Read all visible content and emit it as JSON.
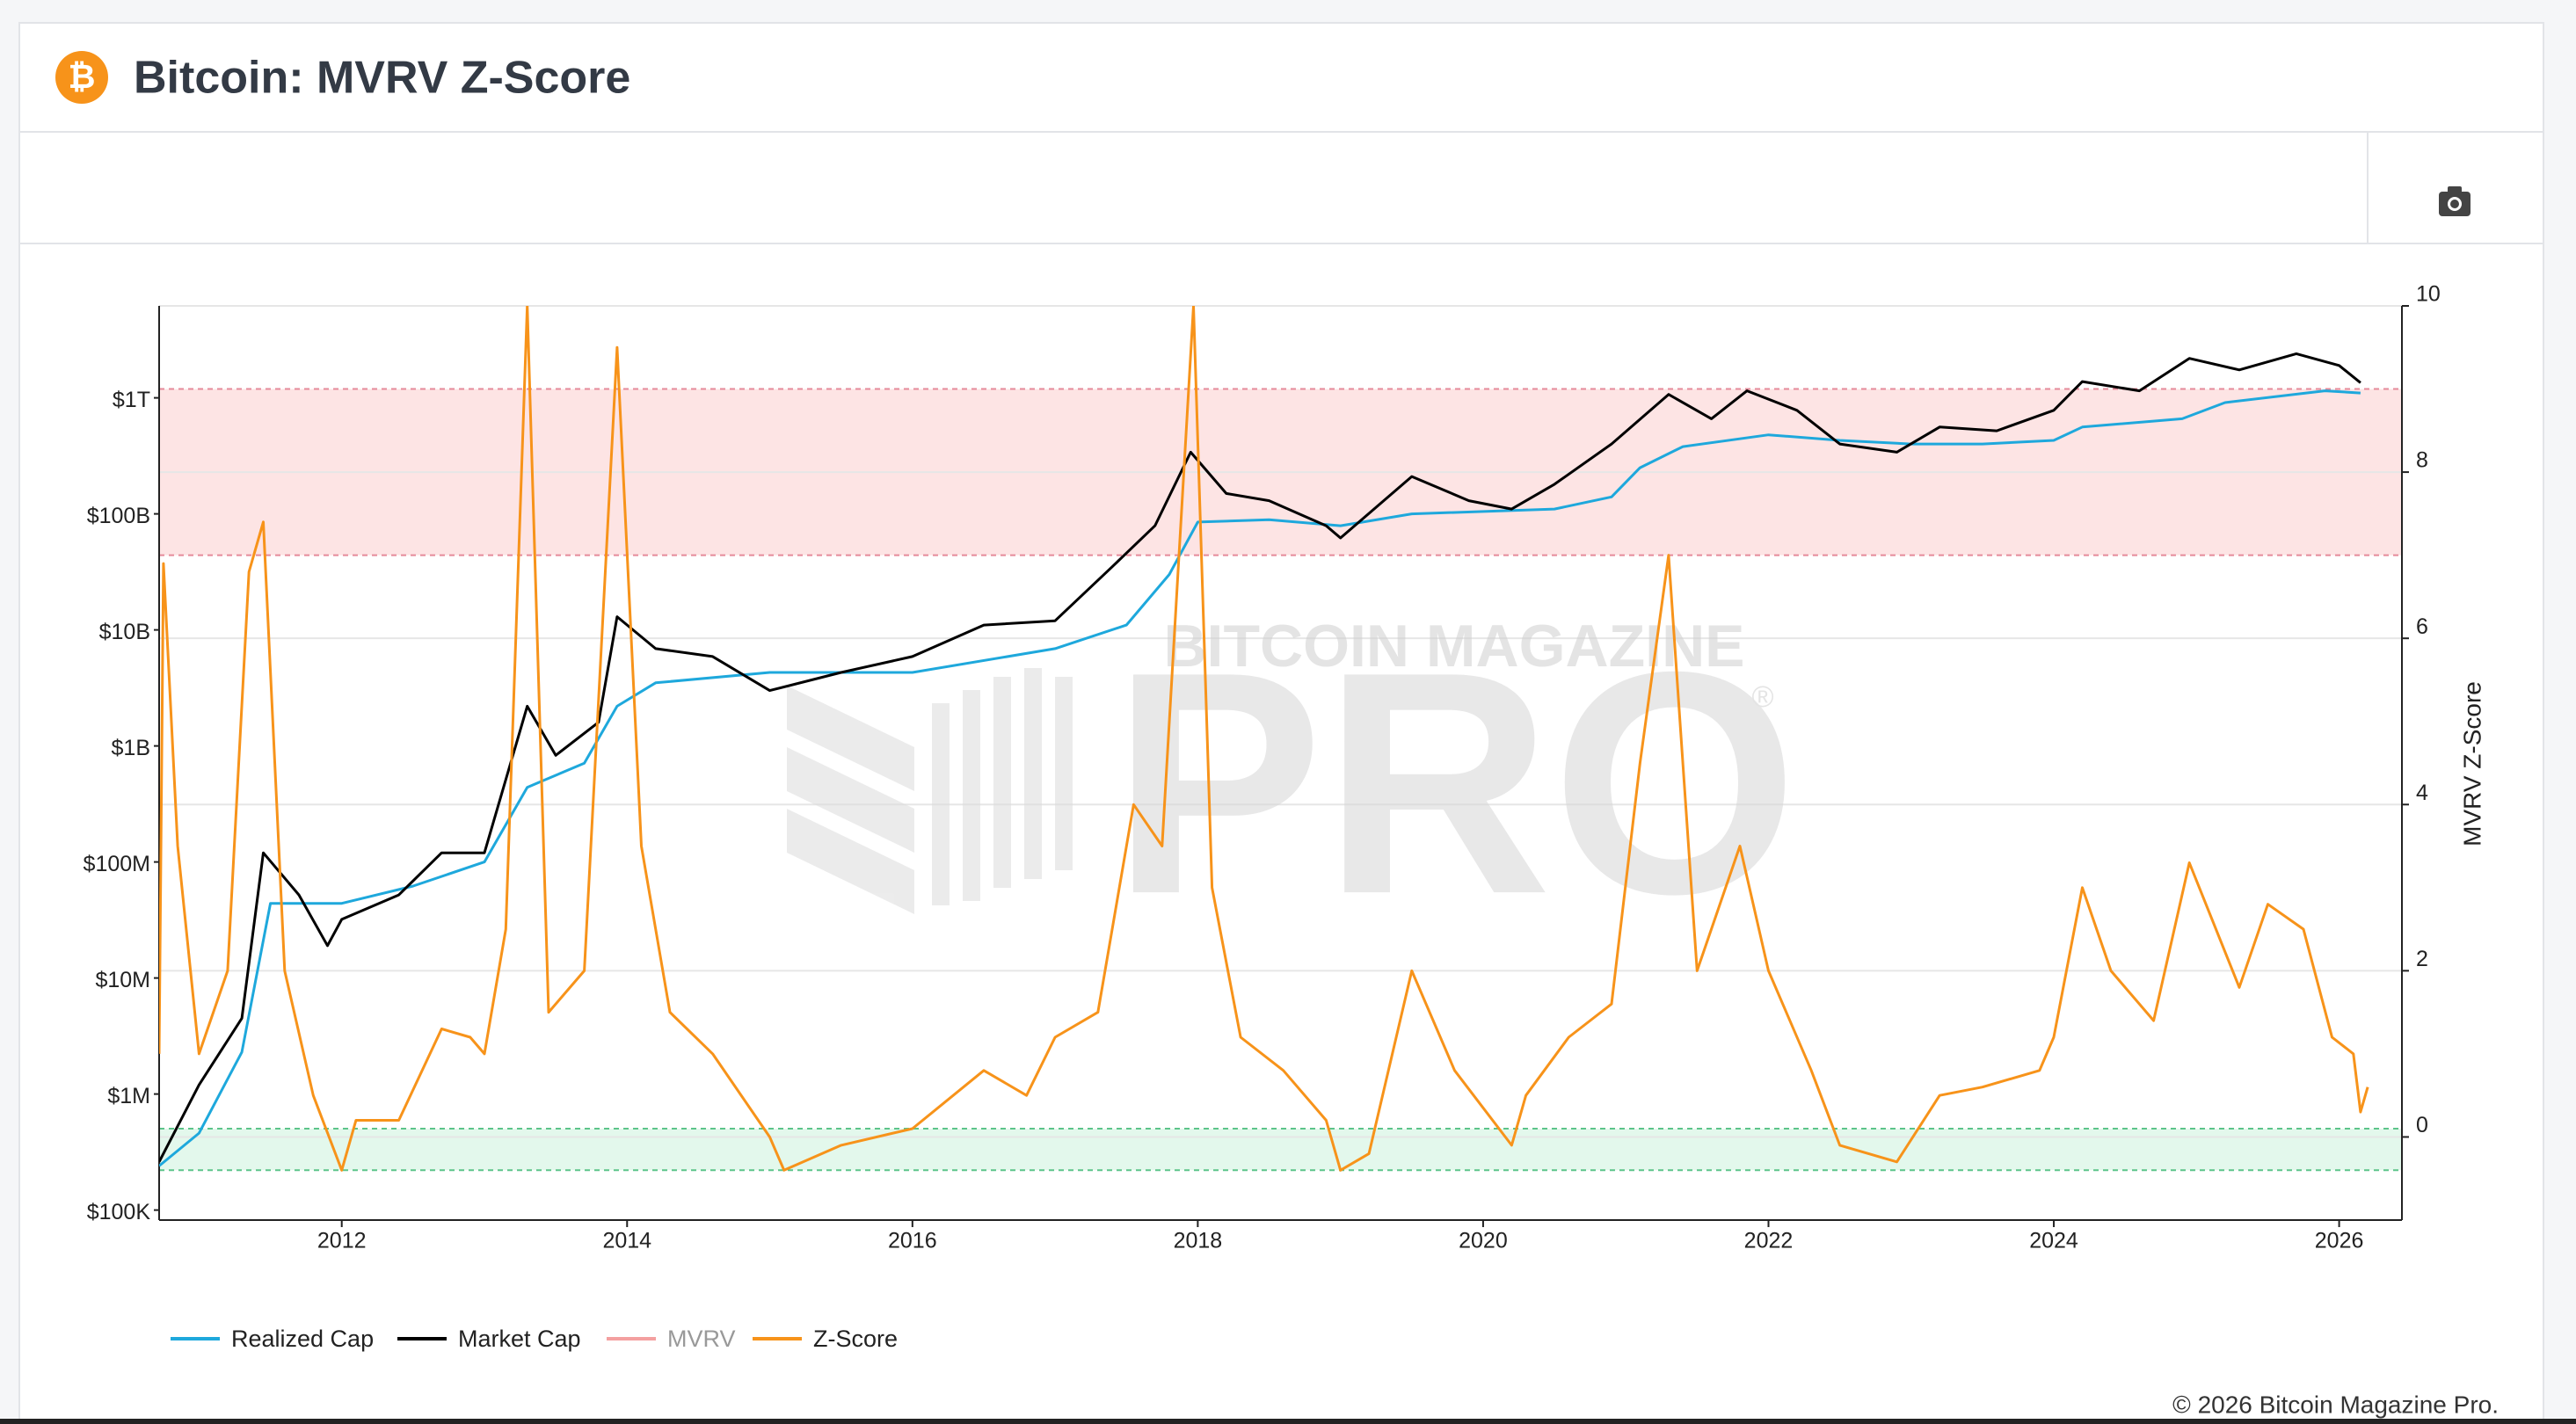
{
  "chart_data": {
    "type": "line",
    "title": "Bitcoin: MVRV Z-Score",
    "y2_label": "MVRV Z-Score",
    "watermark": [
      "BITCOIN MAGAZINE",
      "PRO",
      "®"
    ],
    "copyright": "© 2026 Bitcoin Magazine Pro.",
    "xlim": [
      2010.72,
      2026.44
    ],
    "xticks": [
      2012,
      2014,
      2016,
      2018,
      2020,
      2022,
      2024,
      2026
    ],
    "ylim": [
      82000,
      6200000000000.0
    ],
    "log_y": true,
    "yticks": [
      {
        "value": 100000,
        "label": "$100K"
      },
      {
        "value": 1000000,
        "label": "$1M"
      },
      {
        "value": 10000000,
        "label": "$10M"
      },
      {
        "value": 100000000,
        "label": "$100M"
      },
      {
        "value": 1000000000,
        "label": "$1B"
      },
      {
        "value": 10000000000,
        "label": "$10B"
      },
      {
        "value": 100000000000,
        "label": "$100B"
      },
      {
        "value": 1000000000000,
        "label": "$1T"
      }
    ],
    "y2lim": [
      -1,
      10
    ],
    "y2ticks": [
      0,
      2,
      4,
      6,
      8,
      10
    ],
    "grid": true,
    "zones": [
      {
        "from": 7,
        "to": 9,
        "color": "#fde4e4",
        "edge": "#e58a9a",
        "axis": "y2"
      },
      {
        "from": -0.4,
        "to": 0.1,
        "color": "#e3f8ec",
        "edge": "#5cc48a",
        "axis": "y2"
      }
    ],
    "legend": "bottom-left",
    "series": [
      {
        "name": "Realized Cap",
        "color": "#1ea8dc",
        "x": [
          2010.72,
          2011.0,
          2011.3,
          2011.5,
          2011.8,
          2012.0,
          2012.5,
          2013.0,
          2013.3,
          2013.7,
          2013.93,
          2014.2,
          2015.0,
          2016.0,
          2017.0,
          2017.5,
          2017.8,
          2018.0,
          2018.5,
          2019.0,
          2019.5,
          2020.5,
          2020.9,
          2021.1,
          2021.4,
          2022.0,
          2022.5,
          2023.0,
          2023.5,
          2024.0,
          2024.2,
          2024.9,
          2025.2,
          2025.9,
          2026.15
        ],
        "values": [
          240000.0,
          460000.0,
          2300000.0,
          44000000.0,
          44000000.0,
          44000000.0,
          62000000.0,
          100000000.0,
          440000000.0,
          710000000.0,
          2200000000.0,
          3500000000.0,
          4300000000.0,
          4300000000.0,
          6900000000.0,
          11000000000.0,
          30000000000.0,
          85000000000.0,
          89000000000.0,
          79000000000.0,
          100000000000.0,
          110000000000.0,
          140000000000.0,
          250000000000.0,
          380000000000.0,
          480000000000.0,
          430000000000.0,
          400000000000.0,
          400000000000.0,
          430000000000.0,
          560000000000.0,
          660000000000.0,
          910000000000.0,
          1150000000000.0,
          1100000000000.0
        ]
      },
      {
        "name": "Market Cap",
        "color": "#000000",
        "x": [
          2010.72,
          2011.0,
          2011.3,
          2011.45,
          2011.7,
          2011.9,
          2012.0,
          2012.4,
          2012.7,
          2013.0,
          2013.3,
          2013.5,
          2013.8,
          2013.93,
          2014.2,
          2014.6,
          2015.0,
          2015.5,
          2016.0,
          2016.5,
          2017.0,
          2017.4,
          2017.7,
          2017.95,
          2018.2,
          2018.5,
          2018.9,
          2019.0,
          2019.5,
          2019.9,
          2020.2,
          2020.5,
          2020.9,
          2021.3,
          2021.6,
          2021.85,
          2022.2,
          2022.5,
          2022.9,
          2023.2,
          2023.6,
          2024.0,
          2024.2,
          2024.6,
          2024.95,
          2025.3,
          2025.7,
          2026.0,
          2026.15
        ],
        "values": [
          260000.0,
          1200000.0,
          4500000.0,
          120000000.0,
          52000000.0,
          19000000.0,
          32000000.0,
          52000000.0,
          120000000.0,
          120000000.0,
          2200000000.0,
          830000000.0,
          1600000000.0,
          13000000000.0,
          6900000000.0,
          5900000000.0,
          3000000000.0,
          4300000000.0,
          5900000000.0,
          11000000000.0,
          12000000000.0,
          35000000000.0,
          79000000000.0,
          340000000000.0,
          150000000000.0,
          130000000000.0,
          79000000000.0,
          62000000000.0,
          210000000000.0,
          130000000000.0,
          110000000000.0,
          180000000000.0,
          400000000000.0,
          1070000000000.0,
          660000000000.0,
          1150000000000.0,
          780000000000.0,
          400000000000.0,
          340000000000.0,
          560000000000.0,
          520000000000.0,
          780000000000.0,
          1380000000000.0,
          1150000000000.0,
          2190000000000.0,
          1740000000000.0,
          2400000000000.0,
          1900000000000.0,
          1350000000000.0
        ]
      },
      {
        "name": "MVRV",
        "color": "#f4a0a0",
        "hidden": true
      },
      {
        "name": "Z-Score",
        "color": "#f7931a",
        "axis": "y2",
        "x": [
          2010.72,
          2010.75,
          2010.85,
          2011.0,
          2011.2,
          2011.35,
          2011.45,
          2011.6,
          2011.8,
          2012.0,
          2012.1,
          2012.4,
          2012.7,
          2012.9,
          2013.0,
          2013.15,
          2013.3,
          2013.45,
          2013.7,
          2013.93,
          2014.1,
          2014.3,
          2014.6,
          2015.0,
          2015.1,
          2015.5,
          2016.0,
          2016.5,
          2016.8,
          2017.0,
          2017.3,
          2017.55,
          2017.75,
          2017.97,
          2018.1,
          2018.3,
          2018.6,
          2018.9,
          2019.0,
          2019.2,
          2019.5,
          2019.8,
          2020.2,
          2020.3,
          2020.6,
          2020.9,
          2021.1,
          2021.3,
          2021.5,
          2021.8,
          2022.0,
          2022.3,
          2022.5,
          2022.9,
          2023.2,
          2023.5,
          2023.9,
          2024.0,
          2024.2,
          2024.4,
          2024.7,
          2024.95,
          2025.3,
          2025.5,
          2025.75,
          2025.95,
          2026.1,
          2026.15,
          2026.2
        ],
        "values": [
          1.0,
          6.9,
          3.5,
          1.0,
          2.0,
          6.8,
          7.4,
          2.0,
          0.5,
          -0.4,
          0.2,
          0.2,
          1.3,
          1.2,
          1.0,
          2.5,
          10,
          1.5,
          2.0,
          9.5,
          3.5,
          1.5,
          1.0,
          0,
          -0.4,
          -0.1,
          0.1,
          0.8,
          0.5,
          1.2,
          1.5,
          4.0,
          3.5,
          10,
          3.0,
          1.2,
          0.8,
          0.2,
          -0.4,
          -0.2,
          2.0,
          0.8,
          -0.1,
          0.5,
          1.2,
          1.6,
          4.5,
          7.0,
          2.0,
          3.5,
          2.0,
          0.8,
          -0.1,
          -0.3,
          0.5,
          0.6,
          0.8,
          1.2,
          3.0,
          2.0,
          1.4,
          3.3,
          1.8,
          2.8,
          2.5,
          1.2,
          1.0,
          0.3,
          0.6
        ]
      }
    ]
  }
}
